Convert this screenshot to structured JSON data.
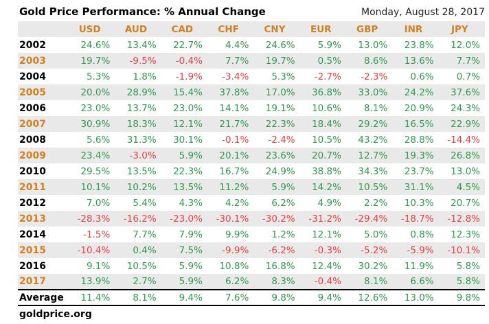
{
  "header": {
    "title": "Gold Price Performance: % Annual Change",
    "date": "Monday, August 28, 2017"
  },
  "footer": {
    "source": "goldprice.org"
  },
  "colors": {
    "positive": "#2d9b4b",
    "negative": "#eb413c",
    "accent_orange": "#d2811d",
    "stripe": "#e9e9e9"
  },
  "chart_data": {
    "type": "table",
    "title": "Gold Price Performance: % Annual Change",
    "columns": [
      "USD",
      "AUD",
      "CAD",
      "CHF",
      "CNY",
      "EUR",
      "GBP",
      "INR",
      "JPY"
    ],
    "rows": [
      {
        "year": "2002",
        "values": [
          "24.6%",
          "13.4%",
          "22.7%",
          "4.4%",
          "24.6%",
          "5.9%",
          "13.0%",
          "23.8%",
          "12.0%"
        ]
      },
      {
        "year": "2003",
        "values": [
          "19.7%",
          "-9.5%",
          "-0.4%",
          "7.7%",
          "19.7%",
          "0.5%",
          "8.6%",
          "13.6%",
          "7.7%"
        ]
      },
      {
        "year": "2004",
        "values": [
          "5.3%",
          "1.8%",
          "-1.9%",
          "-3.4%",
          "5.3%",
          "-2.7%",
          "-2.3%",
          "0.6%",
          "0.7%"
        ]
      },
      {
        "year": "2005",
        "values": [
          "20.0%",
          "28.9%",
          "15.4%",
          "37.8%",
          "17.0%",
          "36.8%",
          "33.0%",
          "24.2%",
          "37.6%"
        ]
      },
      {
        "year": "2006",
        "values": [
          "23.0%",
          "13.7%",
          "23.0%",
          "14.1%",
          "19.1%",
          "10.6%",
          "8.1%",
          "20.9%",
          "24.3%"
        ]
      },
      {
        "year": "2007",
        "values": [
          "30.9%",
          "18.3%",
          "12.1%",
          "21.7%",
          "22.3%",
          "18.4%",
          "29.2%",
          "16.5%",
          "22.9%"
        ]
      },
      {
        "year": "2008",
        "values": [
          "5.6%",
          "31.3%",
          "30.1%",
          "-0.1%",
          "-2.4%",
          "10.5%",
          "43.2%",
          "28.8%",
          "-14.4%"
        ]
      },
      {
        "year": "2009",
        "values": [
          "23.4%",
          "-3.0%",
          "5.9%",
          "20.1%",
          "23.6%",
          "20.7%",
          "12.7%",
          "19.3%",
          "26.8%"
        ]
      },
      {
        "year": "2010",
        "values": [
          "29.5%",
          "13.5%",
          "22.3%",
          "16.7%",
          "24.9%",
          "38.8%",
          "34.3%",
          "23.7%",
          "13.0%"
        ]
      },
      {
        "year": "2011",
        "values": [
          "10.1%",
          "10.2%",
          "13.5%",
          "11.2%",
          "5.9%",
          "14.2%",
          "10.5%",
          "31.1%",
          "4.5%"
        ]
      },
      {
        "year": "2012",
        "values": [
          "7.0%",
          "5.4%",
          "4.3%",
          "4.2%",
          "6.2%",
          "4.9%",
          "2.2%",
          "10.3%",
          "20.7%"
        ]
      },
      {
        "year": "2013",
        "values": [
          "-28.3%",
          "-16.2%",
          "-23.0%",
          "-30.1%",
          "-30.2%",
          "-31.2%",
          "-29.4%",
          "-18.7%",
          "-12.8%"
        ]
      },
      {
        "year": "2014",
        "values": [
          "-1.5%",
          "7.7%",
          "7.9%",
          "9.9%",
          "1.2%",
          "12.1%",
          "5.0%",
          "0.8%",
          "12.3%"
        ]
      },
      {
        "year": "2015",
        "values": [
          "-10.4%",
          "0.4%",
          "7.5%",
          "-9.9%",
          "-6.2%",
          "-0.3%",
          "-5.2%",
          "-5.9%",
          "-10.1%"
        ]
      },
      {
        "year": "2016",
        "values": [
          "9.1%",
          "10.5%",
          "5.9%",
          "10.8%",
          "16.8%",
          "12.4%",
          "30.2%",
          "11.9%",
          "5.8%"
        ]
      },
      {
        "year": "2017",
        "values": [
          "13.9%",
          "2.7%",
          "5.9%",
          "6.2%",
          "8.3%",
          "-0.4%",
          "8.1%",
          "6.6%",
          "5.8%"
        ]
      }
    ],
    "average": {
      "label": "Average",
      "values": [
        "11.4%",
        "8.1%",
        "9.4%",
        "7.6%",
        "9.8%",
        "9.4%",
        "12.6%",
        "13.0%",
        "9.8%"
      ]
    }
  }
}
